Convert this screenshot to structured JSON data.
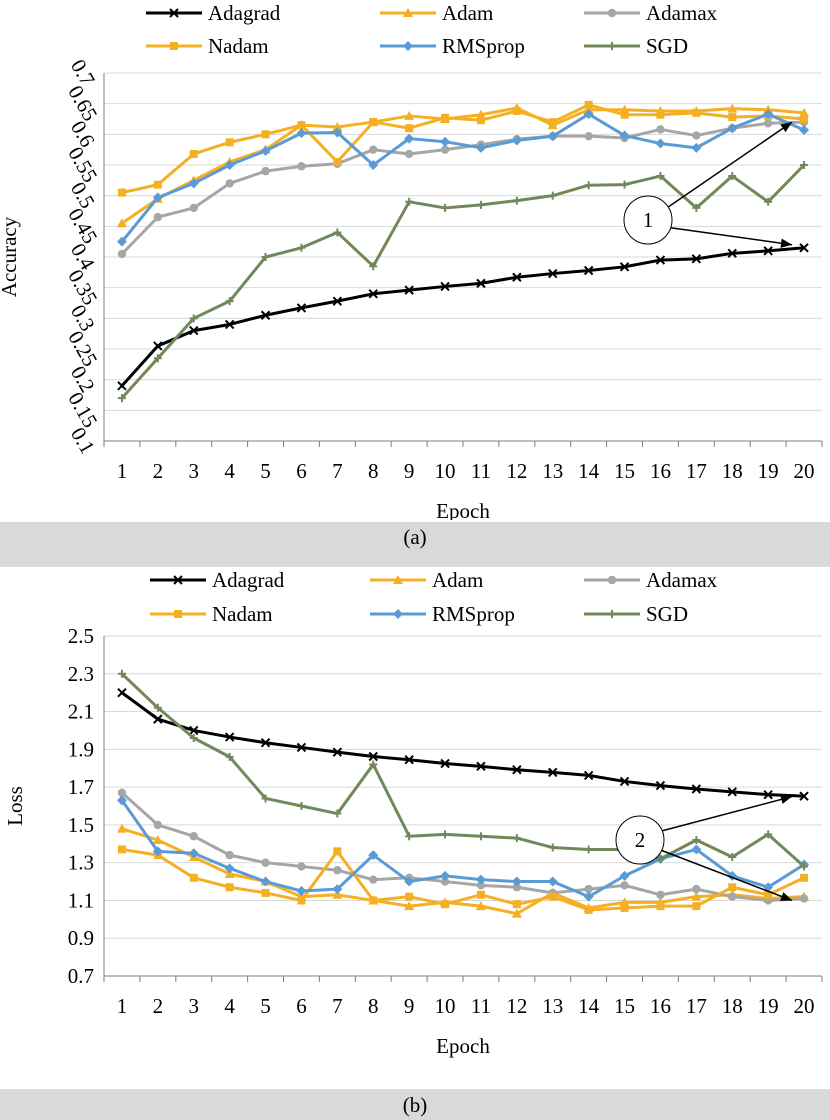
{
  "chart_data": [
    {
      "type": "line",
      "title": "",
      "xlabel": "Epoch",
      "ylabel": "Accuracy",
      "ylim": [
        0.1,
        0.7
      ],
      "yticks": [
        "0.1",
        "0.15",
        "0.2",
        "0.25",
        "0.3",
        "0.35",
        "0.4",
        "0.45",
        "0.5",
        "0.55",
        "0.6",
        "0.65",
        "0.7"
      ],
      "grid": "horizontal",
      "legend": "top",
      "caption": "(a)",
      "annotation": {
        "label": "1",
        "targets": [
          [
            20,
            0.62
          ],
          [
            20,
            0.42
          ]
        ]
      },
      "x": [
        1,
        2,
        3,
        4,
        5,
        6,
        7,
        8,
        9,
        10,
        11,
        12,
        13,
        14,
        15,
        16,
        17,
        18,
        19,
        20
      ],
      "series": [
        {
          "name": "Adagrad",
          "color": "#000000",
          "marker": "x",
          "values": [
            0.19,
            0.255,
            0.28,
            0.29,
            0.305,
            0.317,
            0.328,
            0.34,
            0.346,
            0.352,
            0.357,
            0.367,
            0.373,
            0.378,
            0.384,
            0.395,
            0.397,
            0.406,
            0.41,
            0.415
          ]
        },
        {
          "name": "Adam",
          "color": "#f4b022",
          "marker": "triangle",
          "values": [
            0.455,
            0.495,
            0.525,
            0.555,
            0.575,
            0.615,
            0.612,
            0.62,
            0.63,
            0.625,
            0.632,
            0.643,
            0.615,
            0.64,
            0.64,
            0.638,
            0.638,
            0.642,
            0.64,
            0.635
          ]
        },
        {
          "name": "Adamax",
          "color": "#a6a6a6",
          "marker": "circle",
          "values": [
            0.405,
            0.465,
            0.48,
            0.52,
            0.54,
            0.548,
            0.552,
            0.575,
            0.568,
            0.575,
            0.583,
            0.592,
            0.597,
            0.597,
            0.594,
            0.608,
            0.598,
            0.61,
            0.618,
            0.62
          ]
        },
        {
          "name": "Nadam",
          "color": "#f4b022",
          "marker": "square",
          "values": [
            0.505,
            0.518,
            0.568,
            0.587,
            0.6,
            0.615,
            0.555,
            0.62,
            0.61,
            0.627,
            0.623,
            0.638,
            0.62,
            0.648,
            0.632,
            0.632,
            0.635,
            0.628,
            0.63,
            0.625
          ]
        },
        {
          "name": "RMSprop",
          "color": "#5b9bd5",
          "marker": "diamond",
          "values": [
            0.425,
            0.497,
            0.52,
            0.55,
            0.573,
            0.602,
            0.603,
            0.55,
            0.593,
            0.588,
            0.578,
            0.59,
            0.597,
            0.633,
            0.598,
            0.585,
            0.578,
            0.61,
            0.633,
            0.607
          ]
        },
        {
          "name": "SGD",
          "color": "#70885a",
          "marker": "plus",
          "values": [
            0.17,
            0.235,
            0.3,
            0.328,
            0.4,
            0.415,
            0.44,
            0.385,
            0.49,
            0.48,
            0.485,
            0.492,
            0.5,
            0.517,
            0.518,
            0.532,
            0.48,
            0.532,
            0.49,
            0.55
          ]
        }
      ]
    },
    {
      "type": "line",
      "title": "",
      "xlabel": "Epoch",
      "ylabel": "Loss",
      "ylim": [
        0.7,
        2.5
      ],
      "yticks": [
        "0.7",
        "0.9",
        "1.1",
        "1.3",
        "1.5",
        "1.7",
        "1.9",
        "2.1",
        "2.3",
        "2.5"
      ],
      "grid": "horizontal",
      "legend": "top",
      "caption": "(b)",
      "annotation": {
        "label": "2",
        "targets": [
          [
            20,
            1.65
          ],
          [
            20,
            1.1
          ]
        ]
      },
      "x": [
        1,
        2,
        3,
        4,
        5,
        6,
        7,
        8,
        9,
        10,
        11,
        12,
        13,
        14,
        15,
        16,
        17,
        18,
        19,
        20
      ],
      "series": [
        {
          "name": "Adagrad",
          "color": "#000000",
          "marker": "x",
          "values": [
            2.2,
            2.06,
            2.0,
            1.965,
            1.935,
            1.91,
            1.885,
            1.862,
            1.845,
            1.825,
            1.81,
            1.792,
            1.778,
            1.762,
            1.73,
            1.708,
            1.69,
            1.675,
            1.66,
            1.652
          ]
        },
        {
          "name": "Adam",
          "color": "#f4b022",
          "marker": "triangle",
          "values": [
            1.48,
            1.42,
            1.33,
            1.24,
            1.2,
            1.12,
            1.13,
            1.1,
            1.07,
            1.09,
            1.07,
            1.03,
            1.14,
            1.06,
            1.09,
            1.09,
            1.12,
            1.13,
            1.11,
            1.12
          ]
        },
        {
          "name": "Adamax",
          "color": "#a6a6a6",
          "marker": "circle",
          "values": [
            1.67,
            1.5,
            1.44,
            1.34,
            1.3,
            1.28,
            1.26,
            1.21,
            1.22,
            1.2,
            1.18,
            1.17,
            1.14,
            1.16,
            1.18,
            1.13,
            1.16,
            1.12,
            1.1,
            1.11
          ]
        },
        {
          "name": "Nadam",
          "color": "#f4b022",
          "marker": "square",
          "values": [
            1.37,
            1.34,
            1.22,
            1.17,
            1.14,
            1.1,
            1.36,
            1.1,
            1.12,
            1.08,
            1.13,
            1.08,
            1.12,
            1.05,
            1.06,
            1.07,
            1.07,
            1.17,
            1.13,
            1.22
          ]
        },
        {
          "name": "RMSprop",
          "color": "#5b9bd5",
          "marker": "diamond",
          "values": [
            1.63,
            1.36,
            1.35,
            1.27,
            1.2,
            1.15,
            1.16,
            1.34,
            1.2,
            1.23,
            1.21,
            1.2,
            1.2,
            1.12,
            1.23,
            1.32,
            1.37,
            1.23,
            1.17,
            1.29
          ]
        },
        {
          "name": "SGD",
          "color": "#70885a",
          "marker": "plus",
          "values": [
            2.3,
            2.12,
            1.96,
            1.86,
            1.64,
            1.6,
            1.56,
            1.82,
            1.44,
            1.45,
            1.44,
            1.43,
            1.38,
            1.37,
            1.37,
            1.32,
            1.42,
            1.33,
            1.45,
            1.28
          ]
        }
      ]
    }
  ]
}
